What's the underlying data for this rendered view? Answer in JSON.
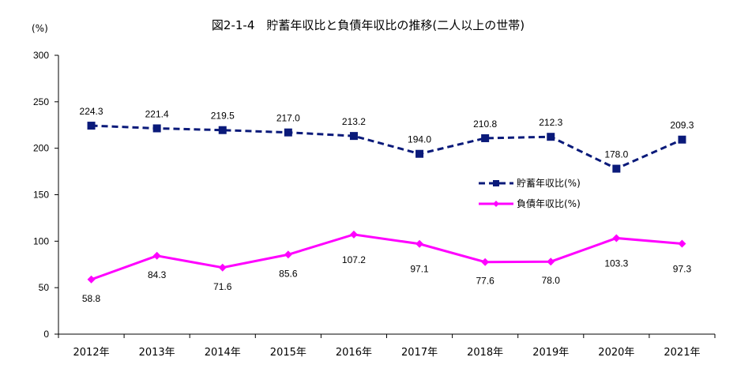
{
  "chart_data": {
    "type": "line",
    "title": "図2-1-4　貯蓄年収比と負債年収比の推移(二人以上の世帯)",
    "ylabel": "(%)",
    "xlabel": "",
    "ylim": [
      0,
      300
    ],
    "yticks": [
      "0",
      "50",
      "100",
      "150",
      "200",
      "250",
      "300"
    ],
    "categories": [
      "2012年",
      "2013年",
      "2014年",
      "2015年",
      "2016年",
      "2017年",
      "2018年",
      "2019年",
      "2020年",
      "2021年"
    ],
    "grid": false,
    "legend_position": "right-middle",
    "series": [
      {
        "name": "貯蓄年収比(%)",
        "color": "#0a1a7a",
        "style": "dashed",
        "marker": "square",
        "values": [
          224.3,
          221.4,
          219.5,
          217.0,
          213.2,
          194.0,
          210.8,
          212.3,
          178.0,
          209.3
        ],
        "labels": [
          "224.3",
          "221.4",
          "219.5",
          "217.0",
          "213.2",
          "194.0",
          "210.8",
          "212.3",
          "178.0",
          "209.3"
        ]
      },
      {
        "name": "負債年収比(%)",
        "color": "#ff00ff",
        "style": "solid",
        "marker": "diamond",
        "values": [
          58.8,
          84.3,
          71.6,
          85.6,
          107.2,
          97.1,
          77.6,
          78.0,
          103.3,
          97.3
        ],
        "labels": [
          "58.8",
          "84.3",
          "71.6",
          "85.6",
          "107.2",
          "97.1",
          "77.6",
          "78.0",
          "103.3",
          "97.3"
        ]
      }
    ]
  }
}
